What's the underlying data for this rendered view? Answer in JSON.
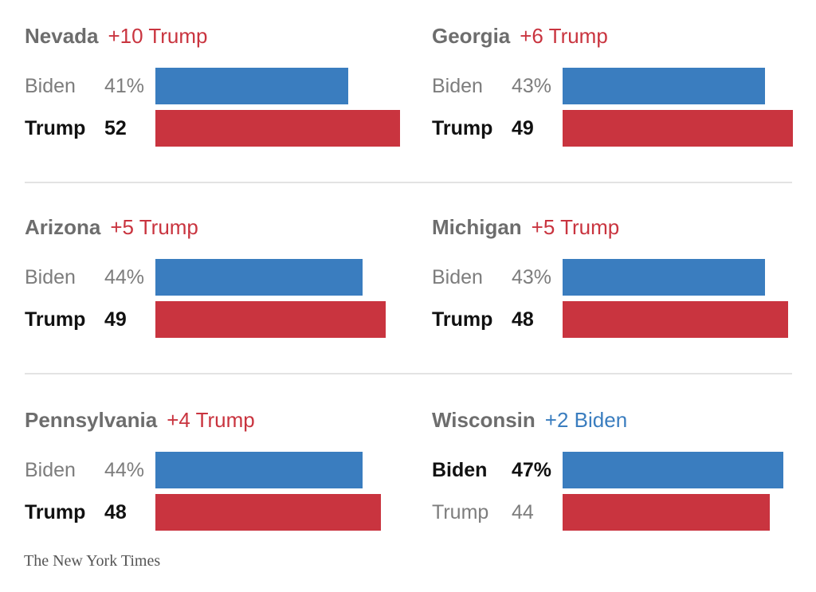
{
  "colors": {
    "biden": "#3a7dbf",
    "trump": "#c9343f"
  },
  "chart_data": [
    {
      "type": "bar",
      "title": "Nevada",
      "lead": "+10 Trump",
      "leader": "trump",
      "categories": [
        "Biden",
        "Trump"
      ],
      "values": [
        41,
        52
      ],
      "labels": [
        "41%",
        "52"
      ]
    },
    {
      "type": "bar",
      "title": "Georgia",
      "lead": "+6 Trump",
      "leader": "trump",
      "categories": [
        "Biden",
        "Trump"
      ],
      "values": [
        43,
        49
      ],
      "labels": [
        "43%",
        "49"
      ]
    },
    {
      "type": "bar",
      "title": "Arizona",
      "lead": "+5 Trump",
      "leader": "trump",
      "categories": [
        "Biden",
        "Trump"
      ],
      "values": [
        44,
        49
      ],
      "labels": [
        "44%",
        "49"
      ]
    },
    {
      "type": "bar",
      "title": "Michigan",
      "lead": "+5 Trump",
      "leader": "trump",
      "categories": [
        "Biden",
        "Trump"
      ],
      "values": [
        43,
        48
      ],
      "labels": [
        "43%",
        "48"
      ]
    },
    {
      "type": "bar",
      "title": "Pennsylvania",
      "lead": "+4 Trump",
      "leader": "trump",
      "categories": [
        "Biden",
        "Trump"
      ],
      "values": [
        44,
        48
      ],
      "labels": [
        "44%",
        "48"
      ]
    },
    {
      "type": "bar",
      "title": "Wisconsin",
      "lead": "+2 Biden",
      "leader": "biden",
      "categories": [
        "Biden",
        "Trump"
      ],
      "values": [
        47,
        44
      ],
      "labels": [
        "47%",
        "44"
      ]
    }
  ],
  "credit": "The New York Times"
}
